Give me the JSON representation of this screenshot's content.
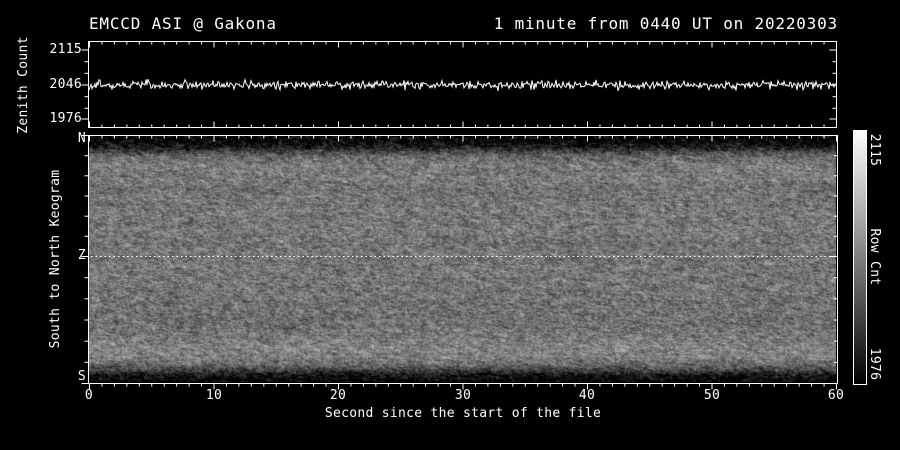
{
  "header": {
    "title": "EMCCD ASI @ Gakona",
    "subtitle": "1 minute from 0440 UT on 20220303"
  },
  "top_panel": {
    "ylabel": "Zenith Count",
    "yticks": [
      "2115",
      "2046",
      "1976"
    ]
  },
  "keogram_panel": {
    "ylabel": "South to North Keogram",
    "yticks": [
      "N",
      "Z",
      "S"
    ]
  },
  "xaxis": {
    "label": "Second since the start of the file",
    "ticks": [
      "0",
      "10",
      "20",
      "30",
      "40",
      "50",
      "60"
    ]
  },
  "colorbar": {
    "label": "Row Cnt",
    "max": "2115",
    "min": "1976"
  },
  "colors": {
    "background": "#000000",
    "foreground": "#ffffff"
  },
  "chart_data": [
    {
      "type": "line",
      "panel": "zenith-count-trace",
      "title": "EMCCD ASI @ Gakona",
      "annotation": "1 minute from 0440 UT on 20220303",
      "ylabel": "Zenith Count",
      "x_range": [
        0,
        60
      ],
      "x_tick_step_major": 10,
      "x_tick_step_minor": 1,
      "y_ticks": [
        2115,
        2046,
        1976
      ],
      "y_range": [
        1960,
        2125
      ],
      "grid": false,
      "legend": false,
      "series": [
        {
          "name": "zenith count",
          "color": "#ffffff",
          "description": "flat noisy trace fluctuating about a constant level for all 60 seconds",
          "mean": 2046,
          "approx_std": 4,
          "approx_peak_to_peak": 25
        }
      ]
    },
    {
      "type": "heatmap",
      "panel": "keogram",
      "ylabel": "South to North Keogram",
      "y_ticks": [
        "N",
        "Z",
        "S"
      ],
      "y_orientation": "N at top, Z at middle, S at bottom",
      "x_range": [
        0,
        60
      ],
      "xlabel": "Second since the start of the file",
      "colormap": "grayscale (black=1976, white=2115)",
      "colorbar_label": "Row Cnt",
      "value_range": [
        1976,
        2115
      ],
      "features": [
        "black band at N horizon (top edge)",
        "uniform speckled mid-gray field over most of the sky, constant in time",
        "faint horizontal streaky banding",
        "thin brighter band just above the S horizon",
        "black band at S horizon (bottom edge)",
        "white dotted horizontal reference line at zenith (Z)"
      ]
    }
  ]
}
